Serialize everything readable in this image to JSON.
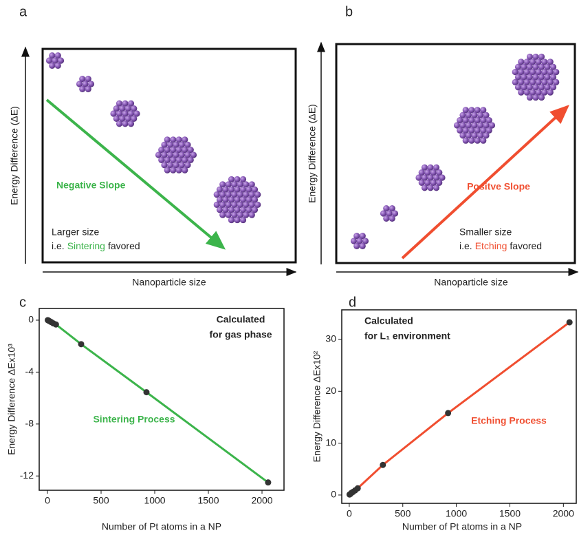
{
  "chart_data": [
    {
      "type": "diagram",
      "panel": "a",
      "y_label": "Energy Difference (ΔE)",
      "x_label": "Nanoparticle size",
      "slope_label": "Negative Slope",
      "color": "#3cb44b",
      "note_line1": "Larger size",
      "note_line2": [
        "i.e.",
        "Sintering",
        "favored"
      ]
    },
    {
      "type": "diagram",
      "panel": "b",
      "y_label": "Energy Difference (ΔE)",
      "x_label": "Nanoparticle size",
      "slope_label": "Positve Slope",
      "color": "#f04e30",
      "note_line1": "Smaller size",
      "note_line2": [
        "i.e.",
        "Etching",
        "favored"
      ]
    },
    {
      "type": "line",
      "panel": "c",
      "x_label": "Number of Pt atoms in a NP",
      "y_label": "Energy Difference ΔEx10³",
      "annotation": [
        "Calculated",
        "for gas phase"
      ],
      "line_label": "Sintering Process",
      "color": "#3cb44b",
      "x": [
        3,
        10,
        20,
        35,
        55,
        79,
        314,
        923,
        2057
      ],
      "values": [
        0.0,
        -0.03,
        -0.08,
        -0.15,
        -0.25,
        -0.33,
        -1.85,
        -5.55,
        -12.5
      ],
      "xlim": [
        -77,
        2205
      ],
      "ylim": [
        -13.1,
        0.9
      ],
      "xticks": [
        0,
        500,
        1000,
        1500,
        2000
      ],
      "yticks": [
        0,
        -4,
        -8,
        -12
      ]
    },
    {
      "type": "line",
      "panel": "d",
      "x_label": "Number of Pt atoms in a NP",
      "y_label": "Energy Difference ΔEx10²",
      "annotation": [
        "Calculated",
        "for L₁ environment"
      ],
      "line_label": "Etching Process",
      "color": "#f04e30",
      "x": [
        3,
        10,
        20,
        35,
        55,
        79,
        314,
        923,
        2057
      ],
      "values": [
        0.1,
        0.2,
        0.4,
        0.6,
        0.9,
        1.3,
        5.8,
        15.8,
        33.3
      ],
      "xlim": [
        -70,
        2120
      ],
      "ylim": [
        -1.6,
        35.7
      ],
      "xticks": [
        0,
        500,
        1000,
        1500,
        2000
      ],
      "yticks": [
        0,
        10,
        20,
        30
      ]
    }
  ]
}
